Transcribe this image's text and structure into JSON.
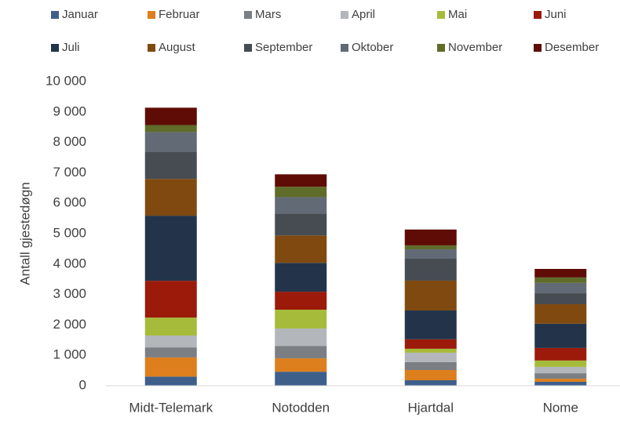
{
  "chart_data": {
    "type": "bar",
    "stacked": true,
    "y_label": "Antall gjestedøgn",
    "categories": [
      "Midt-Telemark",
      "Notodden",
      "Hjartdal",
      "Nome"
    ],
    "series": [
      {
        "name": "Januar",
        "color": "#3e5f8a",
        "values": [
          300,
          460,
          180,
          130
        ]
      },
      {
        "name": "Februar",
        "color": "#dd7f1c",
        "values": [
          630,
          440,
          335,
          100
        ]
      },
      {
        "name": "Mars",
        "color": "#7b7f83",
        "values": [
          330,
          410,
          260,
          180
        ]
      },
      {
        "name": "April",
        "color": "#b3b6ba",
        "values": [
          390,
          570,
          310,
          210
        ]
      },
      {
        "name": "Mai",
        "color": "#a7bb3a",
        "values": [
          590,
          620,
          130,
          210
        ]
      },
      {
        "name": "Juni",
        "color": "#9b1a0a",
        "values": [
          1210,
          590,
          310,
          410
        ]
      },
      {
        "name": "Juli",
        "color": "#23344a",
        "values": [
          2140,
          950,
          950,
          800
        ]
      },
      {
        "name": "August",
        "color": "#80490f",
        "values": [
          1210,
          900,
          980,
          640
        ]
      },
      {
        "name": "September",
        "color": "#474c52",
        "values": [
          900,
          720,
          720,
          360
        ]
      },
      {
        "name": "Oktober",
        "color": "#626b75",
        "values": [
          640,
          540,
          310,
          340
        ]
      },
      {
        "name": "November",
        "color": "#5f6c2a",
        "values": [
          230,
          340,
          130,
          180
        ]
      },
      {
        "name": "Desember",
        "color": "#5e0c05",
        "values": [
          570,
          410,
          520,
          280
        ]
      }
    ],
    "ylim": [
      0,
      10000
    ],
    "yticks": [
      0,
      {
        "value": 1000,
        "label": "1 000"
      },
      {
        "value": 2000,
        "label": "2 000"
      },
      {
        "value": 3000,
        "label": "3 000"
      },
      {
        "value": 4000,
        "label": "4 000"
      },
      {
        "value": 5000,
        "label": "5 000"
      },
      {
        "value": 6000,
        "label": "6 000"
      },
      {
        "value": 7000,
        "label": "7 000"
      },
      {
        "value": 8000,
        "label": "8 000"
      },
      {
        "value": 9000,
        "label": "9 000"
      },
      {
        "value": 10000,
        "label": "10 000"
      }
    ],
    "grid": false,
    "legend": "top"
  }
}
